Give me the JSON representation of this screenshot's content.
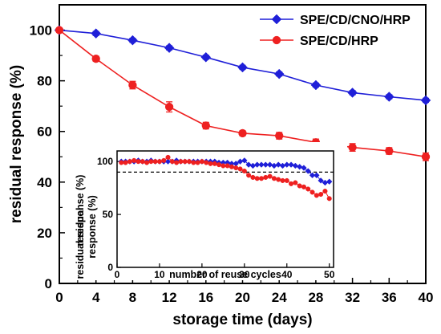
{
  "chart_data": [
    {
      "type": "line",
      "xlabel": "storage time (days)",
      "ylabel": "residual response (%)",
      "xlim": [
        0,
        40
      ],
      "ylim": [
        0,
        110
      ],
      "xticks": [
        0,
        4,
        8,
        12,
        16,
        20,
        24,
        28,
        32,
        36,
        40
      ],
      "yticks": [
        0,
        20,
        40,
        60,
        80,
        100
      ],
      "grid": false,
      "legend_position": "top-right",
      "x": [
        0,
        4,
        8,
        12,
        16,
        20,
        24,
        28,
        32,
        36,
        40
      ],
      "series": [
        {
          "name": "SPE/CD/CNO/HRP",
          "color": "#1f1fd8",
          "marker": "diamond",
          "values": [
            100,
            98.7,
            96,
            93,
            89.3,
            85.3,
            82.7,
            78.3,
            75.3,
            73.7,
            72.3
          ],
          "errors": [
            0.5,
            0.8,
            0.8,
            0.8,
            0.8,
            0.8,
            0.8,
            0.8,
            0.8,
            0.8,
            0.8
          ]
        },
        {
          "name": "SPE/CD/HRP",
          "color": "#ee2020",
          "marker": "circle",
          "values": [
            100,
            88.7,
            78.3,
            69.7,
            62.3,
            59.3,
            58.3,
            55.7,
            53.7,
            52.3,
            50
          ],
          "errors": [
            0.5,
            1.0,
            1.5,
            2.0,
            1.3,
            1.0,
            1.3,
            1.3,
            1.5,
            1.3,
            1.5
          ]
        }
      ]
    },
    {
      "type": "line",
      "position": "inset",
      "xlabel": "number of reuse cycles",
      "ylabel": "residual response (%)",
      "xlim": [
        0,
        51
      ],
      "ylim": [
        0,
        110
      ],
      "xticks": [
        0,
        10,
        20,
        30,
        40,
        50
      ],
      "yticks": [
        0,
        50,
        100
      ],
      "reference_line": 90,
      "reference_line_style": "dashed",
      "x": [
        1,
        2,
        3,
        4,
        5,
        6,
        7,
        8,
        9,
        10,
        11,
        12,
        13,
        14,
        15,
        16,
        17,
        18,
        19,
        20,
        21,
        22,
        23,
        24,
        25,
        26,
        27,
        28,
        29,
        30,
        31,
        32,
        33,
        34,
        35,
        36,
        37,
        38,
        39,
        40,
        41,
        42,
        43,
        44,
        45,
        46,
        47,
        48,
        49,
        50
      ],
      "series": [
        {
          "name": "",
          "color": "#1f1fd8",
          "marker": "diamond",
          "values": [
            100,
            100,
            100,
            100,
            101,
            100,
            100,
            101,
            100,
            100,
            100,
            100,
            100,
            101,
            100,
            100,
            100,
            100,
            100,
            100,
            100,
            100,
            100,
            99,
            99,
            99,
            98,
            98,
            100,
            101,
            97,
            96,
            97,
            97,
            97,
            97,
            96,
            97,
            96,
            97,
            97,
            96,
            95,
            94,
            91,
            87,
            87,
            82,
            80,
            81
          ]
        },
        {
          "name": "",
          "color": "#ee2020",
          "marker": "circle",
          "values": [
            99,
            99,
            100,
            101,
            100,
            100,
            99,
            100,
            100,
            100,
            101,
            104,
            100,
            99,
            100,
            100,
            100,
            99,
            99,
            100,
            99,
            98,
            98,
            97,
            96,
            96,
            95,
            94,
            93,
            91,
            87,
            85,
            84,
            84,
            85,
            86,
            84,
            83,
            82,
            82,
            79,
            80,
            77,
            76,
            74,
            71,
            68,
            69,
            72,
            65
          ]
        }
      ]
    }
  ]
}
